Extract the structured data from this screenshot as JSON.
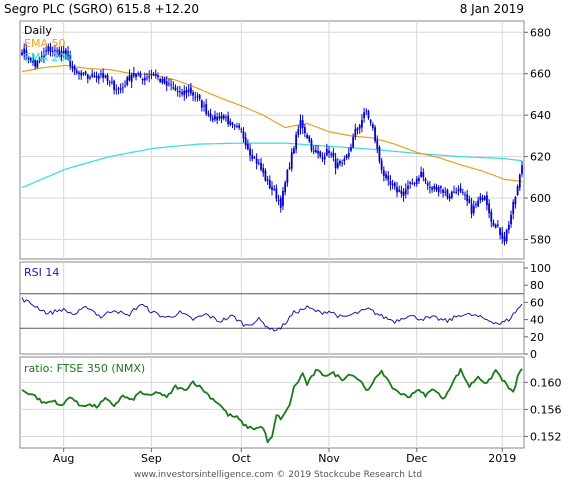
{
  "header": {
    "title": "Segro PLC (SGRO) 615.8 +12.20",
    "date": "8 Jan 2019"
  },
  "footer": {
    "text": "www.investorsintelligence.com © 2019 Stockcube Research Ltd"
  },
  "colors": {
    "candles": "#0000cc",
    "ema_fast": "#e8a020",
    "ema_slow": "#33dddd",
    "rsi": "#1a1aa8",
    "ratio": "#1a7a1a",
    "grid": "#d8d8d8",
    "rsi_band": "#555555"
  },
  "chart_data": [
    {
      "type": "line",
      "panel": "price",
      "title": "Segro PLC (SGRO) 615.8 +12.20",
      "legend": [
        "Daily",
        "EMA 50",
        "EMA 200"
      ],
      "ylim": [
        572,
        684
      ],
      "yticks": [
        580,
        600,
        620,
        640,
        660,
        680
      ],
      "xticks": [
        "Aug",
        "Sep",
        "Oct",
        "Nov",
        "Dec",
        "2019"
      ],
      "xtick_index": [
        19,
        59,
        100,
        140,
        180,
        219
      ],
      "n_sessions": 229,
      "price_anchors": [
        [
          0,
          672
        ],
        [
          6,
          664
        ],
        [
          12,
          672
        ],
        [
          16,
          670
        ],
        [
          20,
          670
        ],
        [
          24,
          660
        ],
        [
          30,
          658
        ],
        [
          36,
          660
        ],
        [
          40,
          655
        ],
        [
          45,
          652
        ],
        [
          50,
          660
        ],
        [
          55,
          658
        ],
        [
          60,
          660
        ],
        [
          64,
          656
        ],
        [
          68,
          654
        ],
        [
          72,
          650
        ],
        [
          76,
          652
        ],
        [
          80,
          648
        ],
        [
          84,
          642
        ],
        [
          88,
          638
        ],
        [
          92,
          640
        ],
        [
          96,
          634
        ],
        [
          100,
          632
        ],
        [
          104,
          622
        ],
        [
          108,
          616
        ],
        [
          112,
          607
        ],
        [
          115,
          603
        ],
        [
          118,
          597
        ],
        [
          121,
          612
        ],
        [
          124,
          625
        ],
        [
          127,
          637
        ],
        [
          130,
          630
        ],
        [
          133,
          622
        ],
        [
          136,
          620
        ],
        [
          140,
          623
        ],
        [
          143,
          616
        ],
        [
          146,
          615
        ],
        [
          149,
          622
        ],
        [
          152,
          632
        ],
        [
          155,
          638
        ],
        [
          157,
          642
        ],
        [
          160,
          633
        ],
        [
          163,
          618
        ],
        [
          166,
          608
        ],
        [
          170,
          604
        ],
        [
          174,
          603
        ],
        [
          178,
          607
        ],
        [
          182,
          612
        ],
        [
          186,
          604
        ],
        [
          190,
          606
        ],
        [
          194,
          601
        ],
        [
          198,
          604
        ],
        [
          202,
          600
        ],
        [
          205,
          594
        ],
        [
          208,
          598
        ],
        [
          211,
          602
        ],
        [
          214,
          590
        ],
        [
          217,
          585
        ],
        [
          220,
          580
        ],
        [
          223,
          592
        ],
        [
          226,
          605
        ],
        [
          228,
          615.8
        ]
      ],
      "ema50_anchors": [
        [
          0,
          661
        ],
        [
          10,
          663
        ],
        [
          20,
          664
        ],
        [
          30,
          662.5
        ],
        [
          40,
          662
        ],
        [
          50,
          660
        ],
        [
          60,
          659.5
        ],
        [
          70,
          657
        ],
        [
          80,
          653
        ],
        [
          90,
          648.5
        ],
        [
          100,
          644.5
        ],
        [
          110,
          640
        ],
        [
          120,
          634
        ],
        [
          130,
          636
        ],
        [
          140,
          632
        ],
        [
          150,
          630
        ],
        [
          160,
          629
        ],
        [
          170,
          626
        ],
        [
          180,
          622
        ],
        [
          190,
          619.5
        ],
        [
          200,
          616
        ],
        [
          210,
          613
        ],
        [
          220,
          609
        ],
        [
          228,
          608
        ]
      ],
      "ema200_anchors": [
        [
          0,
          605
        ],
        [
          20,
          614
        ],
        [
          40,
          620
        ],
        [
          60,
          624
        ],
        [
          80,
          626
        ],
        [
          100,
          626.5
        ],
        [
          120,
          626.5
        ],
        [
          140,
          625
        ],
        [
          160,
          623.5
        ],
        [
          180,
          621.5
        ],
        [
          200,
          620
        ],
        [
          220,
          619
        ],
        [
          228,
          618
        ]
      ]
    },
    {
      "type": "line",
      "panel": "rsi",
      "title": "RSI 14",
      "ylim": [
        0,
        100
      ],
      "yticks": [
        0,
        20,
        40,
        60,
        80,
        100
      ],
      "bands": [
        30,
        70
      ],
      "anchors": [
        [
          0,
          64
        ],
        [
          6,
          56
        ],
        [
          12,
          47
        ],
        [
          18,
          52
        ],
        [
          24,
          46
        ],
        [
          30,
          55
        ],
        [
          36,
          43
        ],
        [
          42,
          52
        ],
        [
          48,
          44
        ],
        [
          54,
          58
        ],
        [
          60,
          48
        ],
        [
          66,
          42
        ],
        [
          72,
          48
        ],
        [
          78,
          40
        ],
        [
          84,
          46
        ],
        [
          90,
          38
        ],
        [
          96,
          44
        ],
        [
          102,
          33
        ],
        [
          108,
          40
        ],
        [
          114,
          28
        ],
        [
          118,
          30
        ],
        [
          124,
          48
        ],
        [
          130,
          54
        ],
        [
          136,
          48
        ],
        [
          140,
          50
        ],
        [
          146,
          42
        ],
        [
          152,
          47
        ],
        [
          158,
          52
        ],
        [
          164,
          44
        ],
        [
          170,
          38
        ],
        [
          176,
          45
        ],
        [
          182,
          41
        ],
        [
          188,
          42
        ],
        [
          194,
          38
        ],
        [
          200,
          46
        ],
        [
          206,
          45
        ],
        [
          212,
          40
        ],
        [
          218,
          35
        ],
        [
          222,
          40
        ],
        [
          228,
          58
        ]
      ]
    },
    {
      "type": "line",
      "panel": "ratio",
      "title": "ratio: FTSE 350 (NMX)",
      "ylim": [
        0.1506,
        0.1633
      ],
      "yticks": [
        0.152,
        0.156,
        0.16
      ],
      "anchors": [
        [
          0,
          0.1588
        ],
        [
          5,
          0.1582
        ],
        [
          10,
          0.1569
        ],
        [
          15,
          0.1573
        ],
        [
          18,
          0.1564
        ],
        [
          22,
          0.158
        ],
        [
          26,
          0.1566
        ],
        [
          30,
          0.1567
        ],
        [
          34,
          0.1564
        ],
        [
          38,
          0.1575
        ],
        [
          42,
          0.1566
        ],
        [
          46,
          0.158
        ],
        [
          50,
          0.1573
        ],
        [
          54,
          0.1586
        ],
        [
          58,
          0.1579
        ],
        [
          62,
          0.1586
        ],
        [
          66,
          0.1577
        ],
        [
          70,
          0.1594
        ],
        [
          74,
          0.1588
        ],
        [
          78,
          0.1601
        ],
        [
          82,
          0.1591
        ],
        [
          86,
          0.1578
        ],
        [
          90,
          0.1568
        ],
        [
          94,
          0.1552
        ],
        [
          98,
          0.1548
        ],
        [
          102,
          0.1535
        ],
        [
          106,
          0.1532
        ],
        [
          110,
          0.1534
        ],
        [
          112,
          0.1512
        ],
        [
          114,
          0.1518
        ],
        [
          116,
          0.1551
        ],
        [
          118,
          0.1547
        ],
        [
          120,
          0.1554
        ],
        [
          122,
          0.1567
        ],
        [
          124,
          0.1592
        ],
        [
          126,
          0.1602
        ],
        [
          128,
          0.1613
        ],
        [
          130,
          0.1597
        ],
        [
          134,
          0.1617
        ],
        [
          138,
          0.1611
        ],
        [
          142,
          0.1613
        ],
        [
          146,
          0.1605
        ],
        [
          150,
          0.1613
        ],
        [
          154,
          0.1603
        ],
        [
          158,
          0.1587
        ],
        [
          162,
          0.161
        ],
        [
          164,
          0.1618
        ],
        [
          168,
          0.1595
        ],
        [
          172,
          0.1585
        ],
        [
          176,
          0.1578
        ],
        [
          180,
          0.1589
        ],
        [
          184,
          0.1581
        ],
        [
          188,
          0.1591
        ],
        [
          192,
          0.1574
        ],
        [
          196,
          0.1598
        ],
        [
          200,
          0.1618
        ],
        [
          204,
          0.1594
        ],
        [
          208,
          0.1609
        ],
        [
          212,
          0.1597
        ],
        [
          216,
          0.1618
        ],
        [
          220,
          0.16
        ],
        [
          224,
          0.1584
        ],
        [
          226,
          0.1608
        ],
        [
          228,
          0.162
        ]
      ]
    }
  ]
}
